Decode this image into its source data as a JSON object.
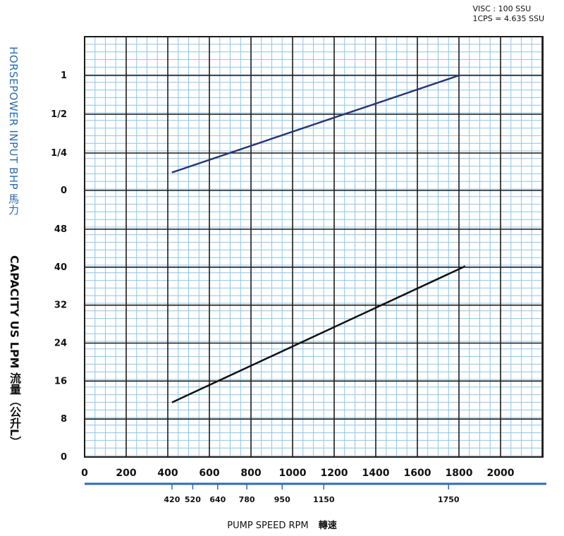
{
  "header": {
    "visc_line1": "VISC : 100 SSU",
    "visc_line2": "1CPS = 4.635 SSU"
  },
  "labels": {
    "horsepower_axis": "HORSEPOWER INPUT BHP 馬力",
    "capacity_axis": "CAPACITY US LPM 流量（公升L）",
    "x_title": "PUMP SPEED RPM",
    "x_title_cn": "轉速"
  },
  "colors": {
    "grid_major": "#1a1a1a",
    "grid_minor": "#8fc4e6",
    "hp_line": "#2a3775",
    "capacity_line": "#111111",
    "axis_accent": "#2c6cb0"
  },
  "chart_data": {
    "type": "line",
    "x_axis": {
      "label": "PUMP SPEED RPM 轉速",
      "range": [
        0,
        2200
      ],
      "ticks": [
        "0",
        "200",
        "400",
        "600",
        "800",
        "1000",
        "1200",
        "1400",
        "1600",
        "1800",
        "2000"
      ],
      "secondary_ticks": [
        "420",
        "520",
        "640",
        "780",
        "950",
        "1150",
        "1750"
      ]
    },
    "hp_axis": {
      "label": "HORSEPOWER INPUT BHP 馬力",
      "ticks": [
        "1",
        "1/2",
        "1/4",
        "0"
      ]
    },
    "capacity_axis": {
      "label": "CAPACITY US LPM 流量（公升L）",
      "range": [
        0,
        48
      ],
      "ticks": [
        "48",
        "40",
        "32",
        "24",
        "16",
        "8",
        "0"
      ]
    },
    "grid": true,
    "series": [
      {
        "axis": "horsepower",
        "x": [
          420,
          1800
        ],
        "y": [
          0.12,
          1.0
        ]
      },
      {
        "axis": "capacity",
        "x": [
          420,
          1830
        ],
        "y": [
          11.5,
          40.2
        ]
      }
    ]
  }
}
